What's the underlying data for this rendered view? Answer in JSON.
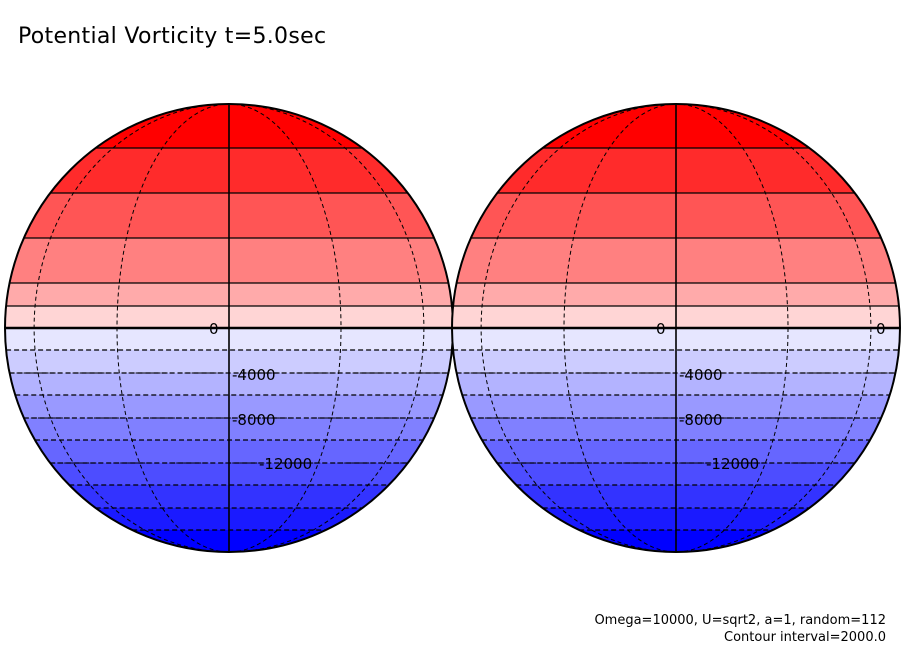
{
  "title": "Potential Vorticity t=5.0sec",
  "footer": {
    "params": "Omega=10000, U=sqrt2, a=1, random=112",
    "interval": "Contour interval=2000.0"
  },
  "colors": {
    "positive": "#ff0000",
    "negative": "#0000ff",
    "zero": "#ffffff"
  },
  "contour_labels": [
    "0",
    "-4000",
    "-8000",
    "-12000"
  ],
  "contour_interval": 2000.0,
  "globes": [
    {
      "name": "left-globe",
      "labels": [
        "0",
        "-4000",
        "-8000",
        "-12000"
      ]
    },
    {
      "name": "right-globe",
      "labels": [
        "0",
        "-4000",
        "-8000",
        "-12000"
      ],
      "extra_label": "0"
    }
  ]
}
